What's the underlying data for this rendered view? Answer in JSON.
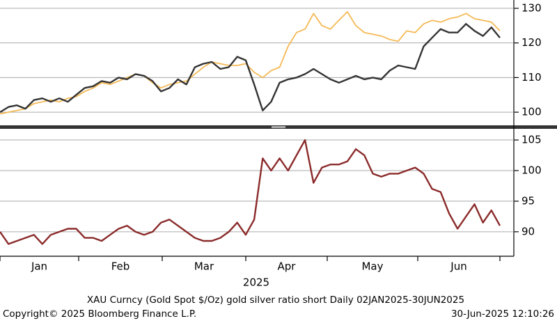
{
  "chart_data": [
    {
      "type": "line",
      "series": [
        {
          "color": "#f5b955",
          "values": [
            99.5,
            100,
            100.5,
            101,
            102.5,
            103,
            103.5,
            103,
            104,
            104.5,
            106,
            107,
            108.5,
            108,
            109,
            110,
            111,
            110.5,
            108.5,
            107,
            108,
            108.5,
            109,
            111,
            113,
            114.5,
            114,
            113.5,
            113.5,
            114,
            111.5,
            110,
            112,
            113,
            119,
            123,
            124,
            128.5,
            125,
            124,
            126.5,
            129,
            125,
            123,
            122.5,
            122,
            121,
            120.5,
            123.5,
            123,
            125.5,
            126.5,
            126,
            127,
            127.5,
            128.5,
            127,
            126.5,
            126,
            123.5
          ]
        },
        {
          "color": "#333333",
          "values": [
            100,
            101.5,
            102,
            101,
            103.5,
            104,
            103,
            104,
            103,
            105,
            107,
            107.5,
            109,
            108.5,
            110,
            109.5,
            111,
            110.5,
            109,
            106,
            107,
            109.5,
            108,
            113,
            114,
            114.5,
            112.5,
            113,
            116,
            115,
            108,
            100.5,
            103,
            108.5,
            109.5,
            110,
            111,
            112.5,
            111,
            109.5,
            108.5,
            109.5,
            110.5,
            109.5,
            110,
            109.5,
            112,
            113.5,
            113,
            112.5,
            119,
            121.5,
            124,
            123,
            123,
            125.5,
            123.5,
            122,
            124.5,
            121.5
          ]
        }
      ],
      "ylim": [
        96.2,
        132.4
      ],
      "yticks": [
        100,
        110,
        120,
        130
      ],
      "grid": true
    },
    {
      "type": "line",
      "series": [
        {
          "color": "#8b2a2a",
          "values": [
            90,
            88,
            88.5,
            89,
            89.5,
            88,
            89.5,
            90,
            90.5,
            90.5,
            89,
            89,
            88.5,
            89.5,
            90.5,
            91,
            90,
            89.5,
            90,
            91.5,
            92,
            91,
            90,
            89,
            88.5,
            88.5,
            89,
            90,
            91.5,
            89.5,
            92,
            102,
            100,
            102,
            100,
            102.5,
            105,
            98,
            100.5,
            101,
            101,
            101.5,
            103.5,
            102.5,
            99.5,
            99,
            99.5,
            99.5,
            100,
            100.5,
            99.5,
            97,
            96.5,
            93,
            90.5,
            92.5,
            94.5,
            91.5,
            93.5,
            91
          ]
        }
      ],
      "ylim": [
        86.0,
        106.6
      ],
      "yticks": [
        90,
        95,
        100,
        105
      ],
      "grid": true,
      "xlabels": [
        "Jan",
        "Feb",
        "Mar",
        "Apr",
        "May",
        "Jun"
      ],
      "xlabel": "2025"
    }
  ],
  "footer": {
    "description": "XAU Curncy (Gold Spot  $/Oz) gold silver ratio short  Daily 02JAN2025-30JUN2025",
    "copyright": "Copyright© 2025 Bloomberg Finance L.P.",
    "timestamp": "30-Jun-2025 12:10:26"
  }
}
